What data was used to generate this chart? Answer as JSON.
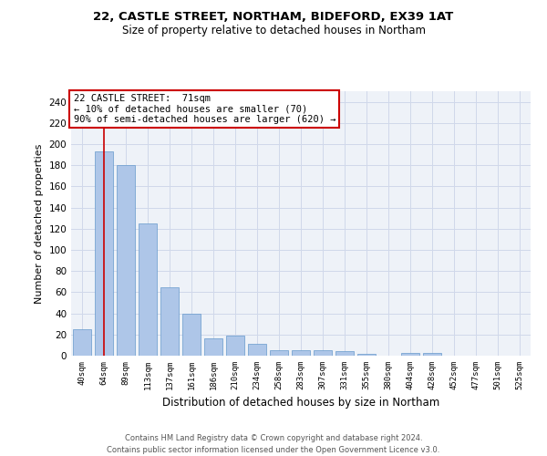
{
  "title_line1": "22, CASTLE STREET, NORTHAM, BIDEFORD, EX39 1AT",
  "title_line2": "Size of property relative to detached houses in Northam",
  "xlabel": "Distribution of detached houses by size in Northam",
  "ylabel": "Number of detached properties",
  "categories": [
    "40sqm",
    "64sqm",
    "89sqm",
    "113sqm",
    "137sqm",
    "161sqm",
    "186sqm",
    "210sqm",
    "234sqm",
    "258sqm",
    "283sqm",
    "307sqm",
    "331sqm",
    "355sqm",
    "380sqm",
    "404sqm",
    "428sqm",
    "452sqm",
    "477sqm",
    "501sqm",
    "525sqm"
  ],
  "values": [
    25,
    193,
    180,
    125,
    65,
    40,
    16,
    19,
    11,
    5,
    5,
    5,
    4,
    2,
    0,
    3,
    3,
    0,
    0,
    0,
    0
  ],
  "bar_color": "#aec6e8",
  "bar_edgecolor": "#6699cc",
  "grid_color": "#d0d8ea",
  "background_color": "#eef2f8",
  "vline_x": 1,
  "vline_color": "#cc0000",
  "annotation_text": "22 CASTLE STREET:  71sqm\n← 10% of detached houses are smaller (70)\n90% of semi-detached houses are larger (620) →",
  "annotation_box_facecolor": "#ffffff",
  "annotation_box_edgecolor": "#cc0000",
  "ylim": [
    0,
    250
  ],
  "yticks": [
    0,
    20,
    40,
    60,
    80,
    100,
    120,
    140,
    160,
    180,
    200,
    220,
    240
  ],
  "footer_line1": "Contains HM Land Registry data © Crown copyright and database right 2024.",
  "footer_line2": "Contains public sector information licensed under the Open Government Licence v3.0."
}
